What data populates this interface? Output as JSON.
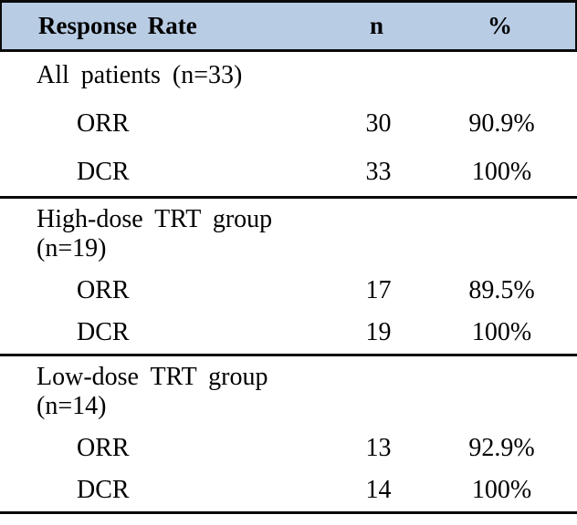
{
  "table": {
    "header": {
      "col1": "Response Rate",
      "col2": "n",
      "col3": "%",
      "bg_color": "#b8cce4",
      "border_color": "#0a0a0a"
    },
    "sections": [
      {
        "title": "All patients (n=33)",
        "rows": [
          {
            "label": "ORR",
            "n": "30",
            "pct": "90.9%"
          },
          {
            "label": "DCR",
            "n": "33",
            "pct": "100%"
          }
        ]
      },
      {
        "title": "High-dose TRT group (n=19)",
        "rows": [
          {
            "label": "ORR",
            "n": "17",
            "pct": "89.5%"
          },
          {
            "label": "DCR",
            "n": "19",
            "pct": "100%"
          }
        ]
      },
      {
        "title": "Low-dose TRT group (n=14)",
        "rows": [
          {
            "label": "ORR",
            "n": "13",
            "pct": "92.9%"
          },
          {
            "label": "DCR",
            "n": "14",
            "pct": "100%"
          }
        ]
      }
    ]
  }
}
